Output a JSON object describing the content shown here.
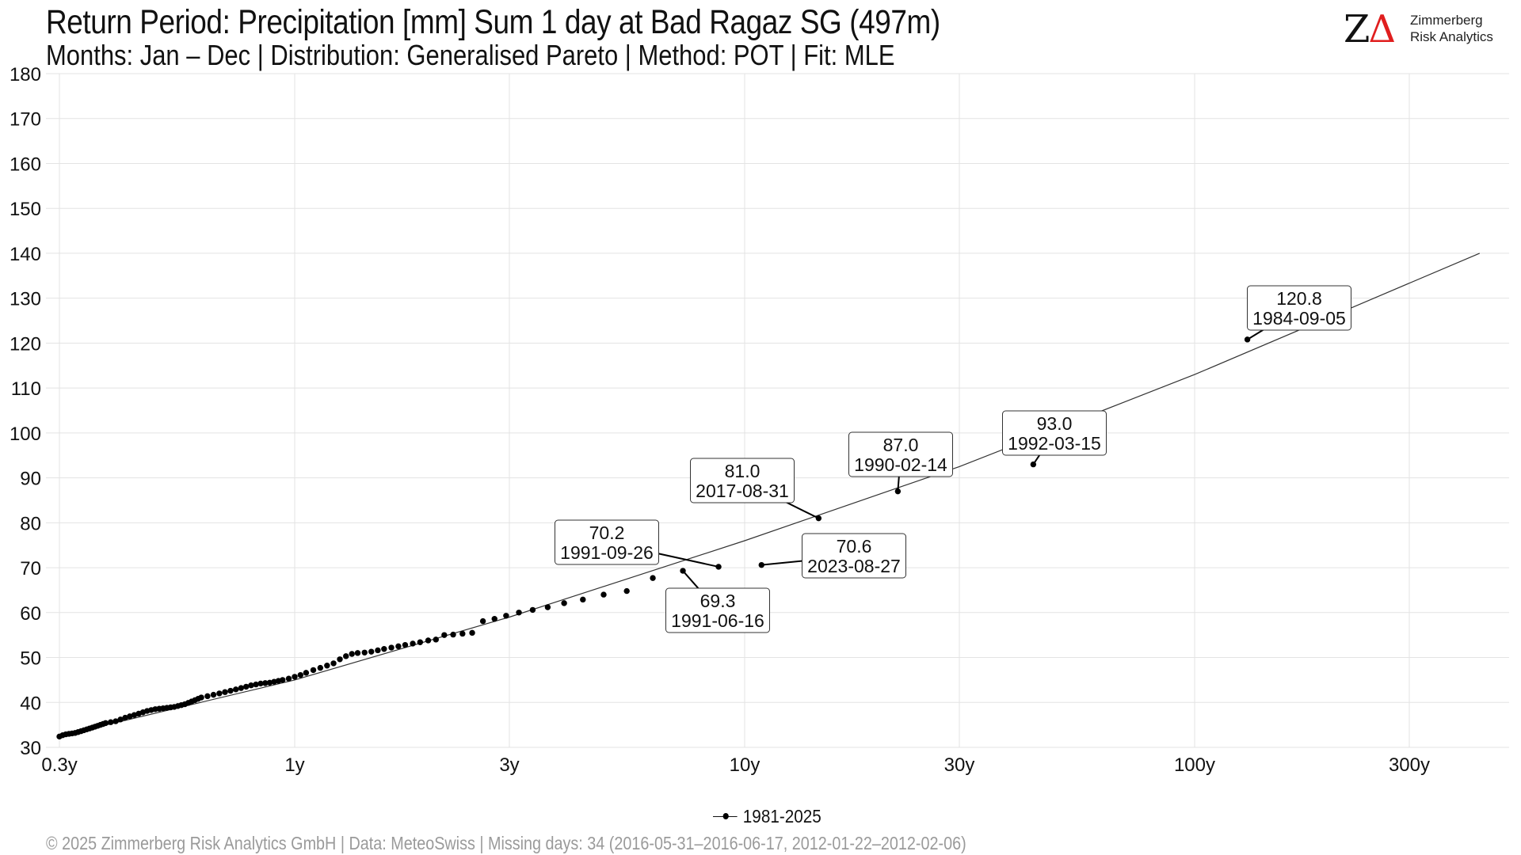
{
  "header": {
    "title": "Return Period: Precipitation [mm] Sum 1 day at Bad Ragaz  SG (497m)",
    "subtitle": "Months: Jan – Dec | Distribution: Generalised Pareto | Method: POT | Fit: MLE"
  },
  "logo": {
    "mark": "Z",
    "mark_delta": "Δ",
    "line1": "Zimmerberg",
    "line2": "Risk Analytics",
    "accent_color": "#e01e1e"
  },
  "legend": {
    "label": "1981-2025"
  },
  "footer": {
    "text": "©  2025 Zimmerberg Risk Analytics GmbH | Data: MeteoSwiss | Missing days: 34 (2016-05-31–2016-06-17, 2012-01-22–2012-02-06)"
  },
  "chart_data": {
    "type": "scatter",
    "x_scale": "log",
    "xlabel": "",
    "ylabel": "",
    "xlim": [
      0.28,
      500
    ],
    "ylim": [
      30,
      180
    ],
    "x_ticks": [
      0.3,
      1,
      3,
      10,
      30,
      100,
      300
    ],
    "x_tick_labels": [
      "0.3y",
      "1y",
      "3y",
      "10y",
      "30y",
      "100y",
      "300y"
    ],
    "y_ticks": [
      30,
      40,
      50,
      60,
      70,
      80,
      90,
      100,
      110,
      120,
      130,
      140,
      150,
      160,
      170,
      180
    ],
    "grid": true,
    "legend_position": "bottom",
    "fit_line": {
      "points": [
        [
          0.3,
          32.5
        ],
        [
          1,
          45
        ],
        [
          3,
          59
        ],
        [
          10,
          76
        ],
        [
          30,
          92.5
        ],
        [
          100,
          113
        ],
        [
          430,
          140
        ]
      ]
    },
    "series": [
      {
        "name": "1981-2025",
        "points": [
          [
            0.3,
            32.4
          ],
          [
            0.305,
            32.7
          ],
          [
            0.31,
            32.9
          ],
          [
            0.315,
            33.0
          ],
          [
            0.32,
            33.1
          ],
          [
            0.325,
            33.2
          ],
          [
            0.33,
            33.4
          ],
          [
            0.335,
            33.6
          ],
          [
            0.34,
            33.8
          ],
          [
            0.345,
            34.0
          ],
          [
            0.35,
            34.2
          ],
          [
            0.355,
            34.4
          ],
          [
            0.36,
            34.6
          ],
          [
            0.365,
            34.8
          ],
          [
            0.37,
            35.0
          ],
          [
            0.375,
            35.2
          ],
          [
            0.38,
            35.4
          ],
          [
            0.39,
            35.6
          ],
          [
            0.4,
            35.8
          ],
          [
            0.41,
            36.2
          ],
          [
            0.42,
            36.6
          ],
          [
            0.43,
            36.9
          ],
          [
            0.44,
            37.2
          ],
          [
            0.45,
            37.5
          ],
          [
            0.46,
            37.8
          ],
          [
            0.47,
            38.1
          ],
          [
            0.48,
            38.3
          ],
          [
            0.49,
            38.5
          ],
          [
            0.5,
            38.6
          ],
          [
            0.51,
            38.7
          ],
          [
            0.52,
            38.8
          ],
          [
            0.53,
            38.9
          ],
          [
            0.54,
            39.0
          ],
          [
            0.55,
            39.2
          ],
          [
            0.56,
            39.4
          ],
          [
            0.57,
            39.6
          ],
          [
            0.58,
            39.9
          ],
          [
            0.59,
            40.2
          ],
          [
            0.6,
            40.5
          ],
          [
            0.61,
            40.8
          ],
          [
            0.62,
            41.1
          ],
          [
            0.64,
            41.4
          ],
          [
            0.66,
            41.7
          ],
          [
            0.68,
            42.0
          ],
          [
            0.7,
            42.3
          ],
          [
            0.72,
            42.6
          ],
          [
            0.74,
            42.9
          ],
          [
            0.76,
            43.2
          ],
          [
            0.78,
            43.5
          ],
          [
            0.8,
            43.8
          ],
          [
            0.82,
            44.0
          ],
          [
            0.84,
            44.2
          ],
          [
            0.86,
            44.3
          ],
          [
            0.88,
            44.4
          ],
          [
            0.9,
            44.6
          ],
          [
            0.92,
            44.8
          ],
          [
            0.94,
            45.0
          ],
          [
            0.97,
            45.3
          ],
          [
            1.0,
            45.7
          ],
          [
            1.03,
            46.1
          ],
          [
            1.06,
            46.6
          ],
          [
            1.1,
            47.2
          ],
          [
            1.14,
            47.7
          ],
          [
            1.18,
            48.2
          ],
          [
            1.22,
            48.7
          ],
          [
            1.26,
            49.6
          ],
          [
            1.3,
            50.3
          ],
          [
            1.34,
            50.8
          ],
          [
            1.38,
            51.0
          ],
          [
            1.43,
            51.1
          ],
          [
            1.48,
            51.3
          ],
          [
            1.53,
            51.6
          ],
          [
            1.58,
            51.9
          ],
          [
            1.64,
            52.2
          ],
          [
            1.7,
            52.5
          ],
          [
            1.76,
            52.8
          ],
          [
            1.83,
            53.1
          ],
          [
            1.9,
            53.4
          ],
          [
            1.98,
            53.8
          ],
          [
            2.06,
            54.0
          ],
          [
            2.15,
            55.0
          ],
          [
            2.25,
            55.1
          ],
          [
            2.36,
            55.3
          ],
          [
            2.48,
            55.5
          ],
          [
            2.62,
            58.1
          ],
          [
            2.78,
            58.6
          ],
          [
            2.95,
            59.3
          ],
          [
            3.15,
            60.0
          ],
          [
            3.38,
            60.6
          ],
          [
            3.65,
            61.2
          ],
          [
            3.97,
            62.1
          ],
          [
            4.37,
            62.9
          ],
          [
            4.86,
            64.0
          ],
          [
            5.47,
            64.8
          ],
          [
            6.25,
            67.7
          ],
          [
            7.29,
            69.3
          ],
          [
            8.75,
            70.2
          ],
          [
            10.9,
            70.6
          ],
          [
            14.6,
            81.0
          ],
          [
            21.9,
            87.0
          ],
          [
            43.8,
            93.0
          ],
          [
            131,
            120.8
          ]
        ]
      }
    ],
    "annotations": [
      {
        "value": "70.2",
        "date": "1991-09-26",
        "x": 8.75,
        "y": 70.2
      },
      {
        "value": "69.3",
        "date": "1991-06-16",
        "x": 7.29,
        "y": 69.3
      },
      {
        "value": "70.6",
        "date": "2023-08-27",
        "x": 10.9,
        "y": 70.6
      },
      {
        "value": "81.0",
        "date": "2017-08-31",
        "x": 14.6,
        "y": 81.0
      },
      {
        "value": "87.0",
        "date": "1990-02-14",
        "x": 21.9,
        "y": 87.0
      },
      {
        "value": "93.0",
        "date": "1992-03-15",
        "x": 43.8,
        "y": 93.0
      },
      {
        "value": "120.8",
        "date": "1984-09-05",
        "x": 131,
        "y": 120.8
      }
    ]
  }
}
